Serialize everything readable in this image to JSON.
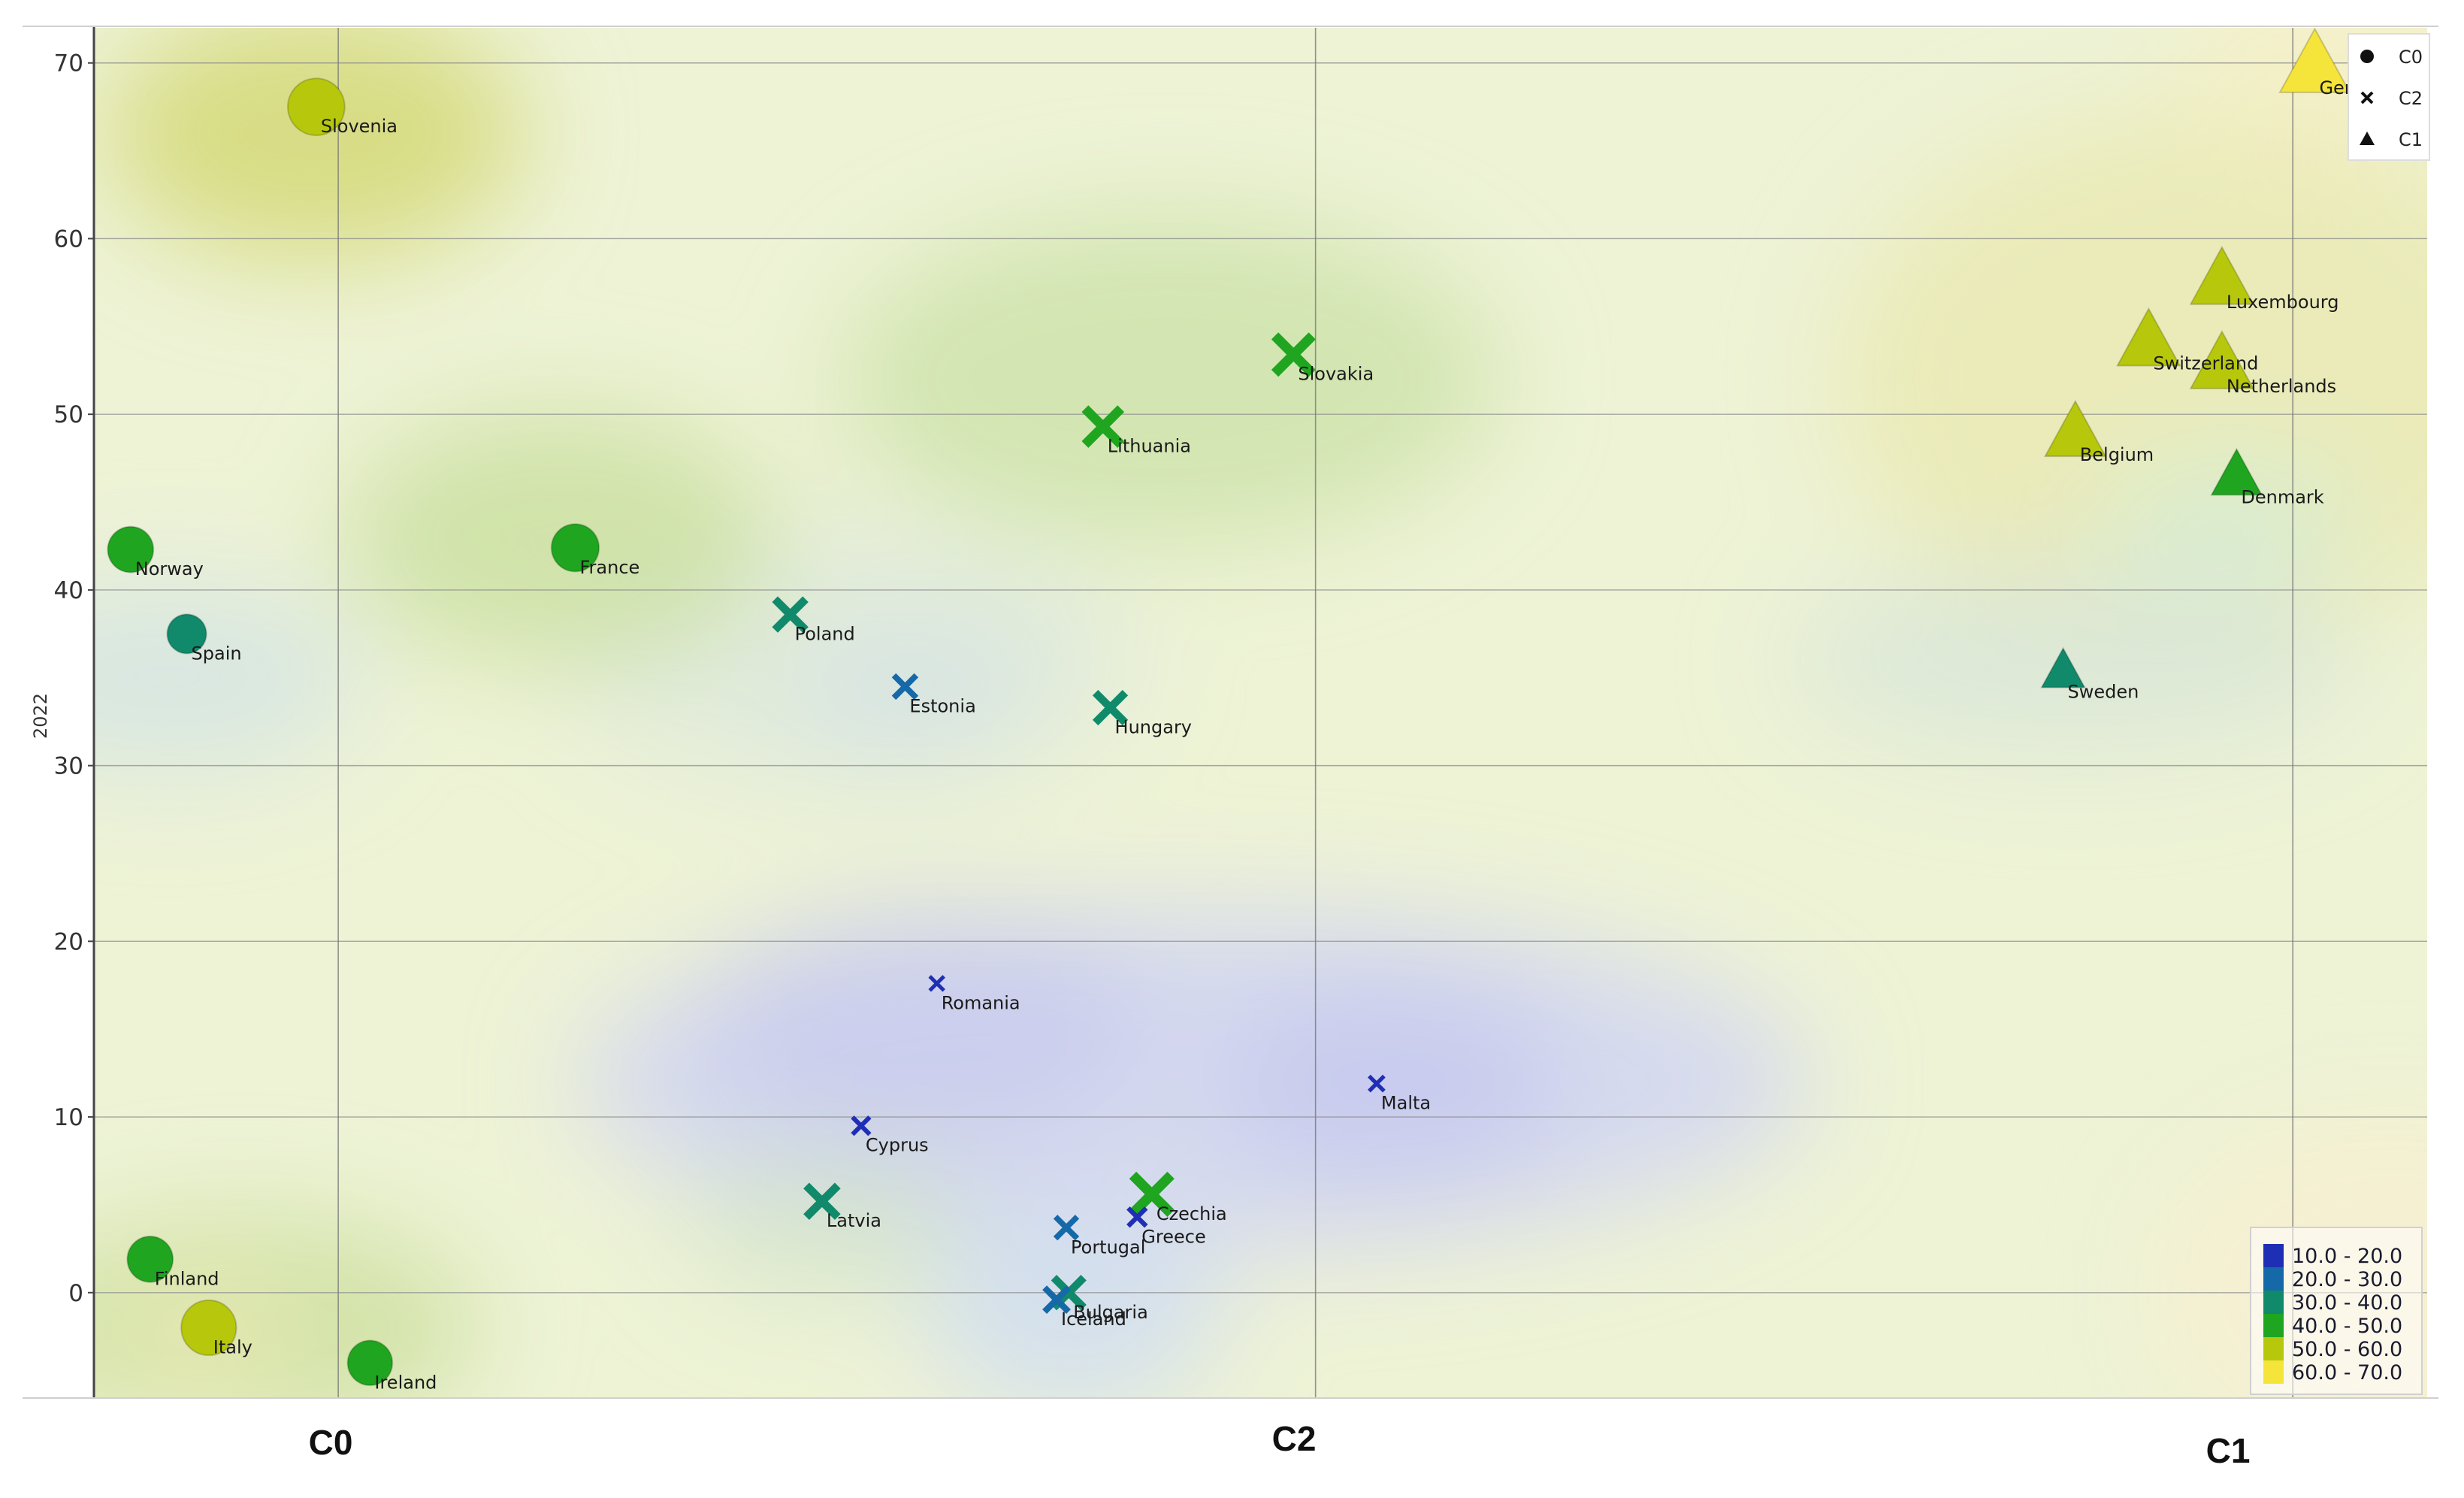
{
  "chart_data": {
    "type": "scatter",
    "title": "",
    "xlabel": "",
    "ylabel": "2022",
    "ylim": [
      -6,
      72
    ],
    "yticks": [
      0,
      10,
      20,
      30,
      40,
      50,
      60,
      70
    ],
    "grid": true,
    "x_categories": [
      "C0",
      "C2",
      "C1"
    ],
    "legend": {
      "placement": "top-right",
      "entries": [
        {
          "name": "C0",
          "marker": "circle"
        },
        {
          "name": "C2",
          "marker": "cross"
        },
        {
          "name": "C1",
          "marker": "triangle"
        }
      ]
    },
    "color_scale": {
      "placement": "bottom-right",
      "ranges": [
        {
          "label": "10.0 - 20.0",
          "color": "#1f2fb5"
        },
        {
          "label": "20.0 - 30.0",
          "color": "#1569a8"
        },
        {
          "label": "30.0 - 40.0",
          "color": "#108a6a"
        },
        {
          "label": "40.0 - 50.0",
          "color": "#1fa51f"
        },
        {
          "label": "50.0 - 60.0",
          "color": "#b7c80c"
        },
        {
          "label": "60.0 - 70.0",
          "color": "#f5e53b"
        }
      ]
    },
    "points": [
      {
        "label": "Slovenia",
        "cluster": "C0",
        "x": 0.91,
        "y": 67.5,
        "value": 55
      },
      {
        "label": "Norway",
        "cluster": "C0",
        "x": 0.15,
        "y": 42.3,
        "value": 43
      },
      {
        "label": "France",
        "cluster": "C0",
        "x": 1.97,
        "y": 42.4,
        "value": 45
      },
      {
        "label": "Spain",
        "cluster": "C0",
        "x": 0.38,
        "y": 37.5,
        "value": 36
      },
      {
        "label": "Finland",
        "cluster": "C0",
        "x": 0.23,
        "y": 1.9,
        "value": 43
      },
      {
        "label": "Italy",
        "cluster": "C0",
        "x": 0.47,
        "y": -2.0,
        "value": 53
      },
      {
        "label": "Ireland",
        "cluster": "C0",
        "x": 1.13,
        "y": -4.0,
        "value": 42
      },
      {
        "label": "Slovakia",
        "cluster": "C2",
        "x": 4.91,
        "y": 53.4,
        "value": 44
      },
      {
        "label": "Lithuania",
        "cluster": "C2",
        "x": 4.13,
        "y": 49.3,
        "value": 42
      },
      {
        "label": "Poland",
        "cluster": "C2",
        "x": 2.85,
        "y": 38.6,
        "value": 35
      },
      {
        "label": "Estonia",
        "cluster": "C2",
        "x": 3.32,
        "y": 34.5,
        "value": 24
      },
      {
        "label": "Hungary",
        "cluster": "C2",
        "x": 4.16,
        "y": 33.3,
        "value": 34
      },
      {
        "label": "Romania",
        "cluster": "C2",
        "x": 3.45,
        "y": 17.6,
        "value": 13
      },
      {
        "label": "Malta",
        "cluster": "C2",
        "x": 5.25,
        "y": 11.9,
        "value": 14
      },
      {
        "label": "Cyprus",
        "cluster": "C2",
        "x": 3.14,
        "y": 9.5,
        "value": 17
      },
      {
        "label": "Latvia",
        "cluster": "C2",
        "x": 2.98,
        "y": 5.2,
        "value": 36
      },
      {
        "label": "Czechia",
        "cluster": "C2",
        "x": 4.33,
        "y": 5.6,
        "value": 45
      },
      {
        "label": "Greece",
        "cluster": "C2",
        "x": 4.27,
        "y": 4.3,
        "value": 18
      },
      {
        "label": "Portugal",
        "cluster": "C2",
        "x": 3.98,
        "y": 3.7,
        "value": 23
      },
      {
        "label": "Bulgaria",
        "cluster": "C2",
        "x": 3.99,
        "y": 0.0,
        "value": 34
      },
      {
        "label": "Iceland",
        "cluster": "C2",
        "x": 3.94,
        "y": -0.4,
        "value": 26
      },
      {
        "label": "Germany",
        "cluster": "C1",
        "x": 9.09,
        "y": 69.7,
        "value": 62
      },
      {
        "label": "Luxembourg",
        "cluster": "C1",
        "x": 8.71,
        "y": 57.5,
        "value": 55
      },
      {
        "label": "Switzerland",
        "cluster": "C1",
        "x": 8.41,
        "y": 54.0,
        "value": 55
      },
      {
        "label": "Netherlands",
        "cluster": "C1",
        "x": 8.71,
        "y": 52.7,
        "value": 55
      },
      {
        "label": "Belgium",
        "cluster": "C1",
        "x": 8.11,
        "y": 48.8,
        "value": 53
      },
      {
        "label": "Denmark",
        "cluster": "C1",
        "x": 8.77,
        "y": 46.4,
        "value": 43
      },
      {
        "label": "Sweden",
        "cluster": "C1",
        "x": 8.06,
        "y": 35.3,
        "value": 36
      }
    ]
  }
}
